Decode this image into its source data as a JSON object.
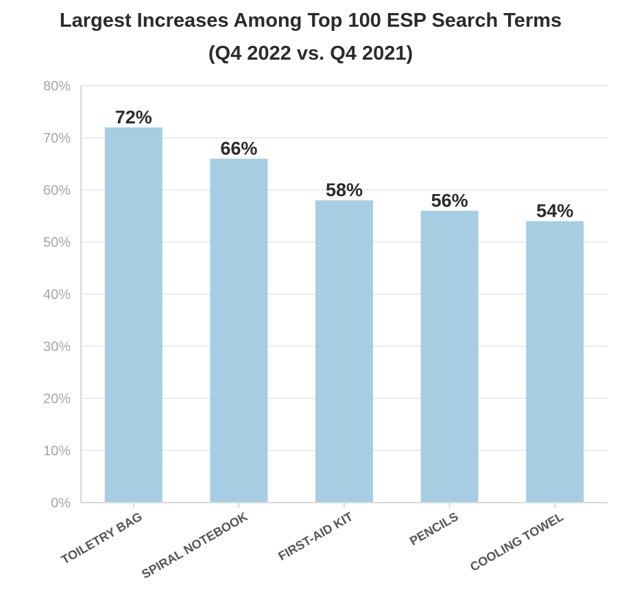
{
  "chart_data": {
    "type": "bar",
    "title": "Largest Increases Among Top 100 ESP Search Terms",
    "subtitle": "(Q4 2022 vs. Q4 2021)",
    "categories": [
      "TOILETRY BAG",
      "SPIRAL NOTEBOOK",
      "FIRST-AID KIT",
      "PENCILS",
      "COOLING TOWEL"
    ],
    "values": [
      72,
      66,
      58,
      56,
      54
    ],
    "data_labels": [
      "72%",
      "66%",
      "58%",
      "56%",
      "54%"
    ],
    "ylim": [
      0,
      80
    ],
    "yticks": [
      0,
      10,
      20,
      30,
      40,
      50,
      60,
      70,
      80
    ],
    "ytick_labels": [
      "0%",
      "10%",
      "20%",
      "30%",
      "40%",
      "50%",
      "60%",
      "70%",
      "80%"
    ],
    "xlabel": "",
    "ylabel": "",
    "grid": true,
    "legend": "none",
    "colors": {
      "bar": "#a7cde2",
      "grid": "#e6e6e6",
      "axis": "#d9d9d9",
      "title": "#2b2b2b",
      "tick_text": "#a6a6a6",
      "category_text": "#555555",
      "data_label_text": "#2b2b2b"
    }
  }
}
